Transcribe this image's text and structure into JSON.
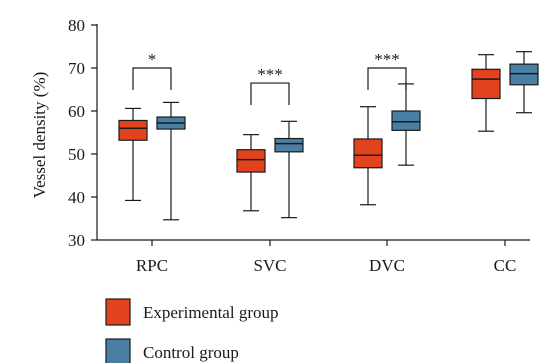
{
  "chart_data": {
    "type": "box",
    "title": "",
    "xlabel": "",
    "ylabel": "Vessel density (%)",
    "ylim": [
      30,
      80
    ],
    "yticks": [
      30,
      40,
      50,
      60,
      70,
      80
    ],
    "categories": [
      "RPC",
      "SVC",
      "DVC",
      "CC"
    ],
    "legend_position": "bottom-left",
    "series": [
      {
        "name": "Experimental group",
        "color": "#e2431e",
        "boxes": [
          {
            "min": 39.2,
            "q1": 53.2,
            "median": 56.0,
            "q3": 57.8,
            "max": 60.6
          },
          {
            "min": 36.8,
            "q1": 45.8,
            "median": 48.7,
            "q3": 51.0,
            "max": 54.5
          },
          {
            "min": 38.2,
            "q1": 46.8,
            "median": 49.7,
            "q3": 53.5,
            "max": 61.0
          },
          {
            "min": 55.3,
            "q1": 62.9,
            "median": 67.4,
            "q3": 69.7,
            "max": 73.1
          }
        ]
      },
      {
        "name": "Control group",
        "color": "#4a7fa4",
        "boxes": [
          {
            "min": 34.7,
            "q1": 55.8,
            "median": 57.2,
            "q3": 58.6,
            "max": 62.0
          },
          {
            "min": 35.2,
            "q1": 50.5,
            "median": 52.4,
            "q3": 53.6,
            "max": 57.6
          },
          {
            "min": 47.4,
            "q1": 55.5,
            "median": 57.5,
            "q3": 60.0,
            "max": 66.3
          },
          {
            "min": 59.6,
            "q1": 66.1,
            "median": 68.7,
            "q3": 70.9,
            "max": 73.8
          }
        ]
      }
    ],
    "significance": [
      {
        "category": "RPC",
        "label": "*",
        "y": 70.0
      },
      {
        "category": "SVC",
        "label": "***",
        "y": 66.5
      },
      {
        "category": "DVC",
        "label": "***",
        "y": 70.0
      }
    ]
  }
}
